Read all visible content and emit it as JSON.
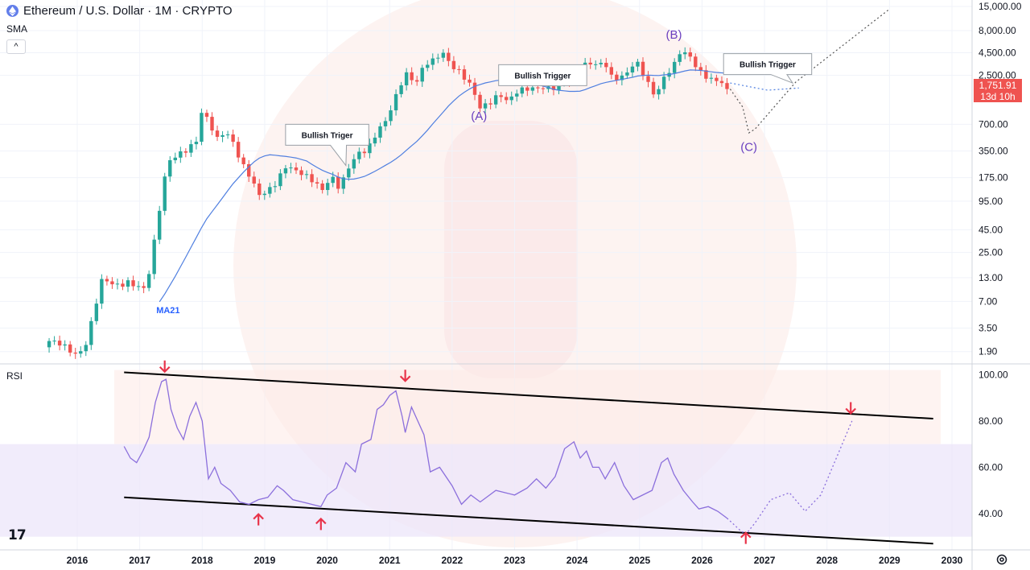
{
  "header": {
    "title": "Ethereum / U.S. Dollar · 1M · CRYPTO",
    "indicator_label": "SMA",
    "collapse_glyph": "^",
    "rsi_label": "RSI",
    "icon": "ethereum-icon",
    "logo_text": "17"
  },
  "price_tag": {
    "price": "1,751.91",
    "countdown": "13d 10h"
  },
  "colors": {
    "up": "#26a69a",
    "down": "#ef5350",
    "ma": "#4f7fe0",
    "rsi": "#8b6fdc",
    "overbought_zone": "#fde9e6",
    "band_zone": "#ece6f9",
    "channel": "#000000",
    "arrow": "#e8334a",
    "wave_label": "#6a3fbf"
  },
  "chart_data": [
    {
      "type": "candlestick",
      "name": "price",
      "y_scale": "log",
      "ylim": [
        1.5,
        15000
      ],
      "price_ticks": [
        15000,
        8000,
        4500,
        2500,
        1751.91,
        700,
        350,
        175,
        95,
        45,
        25,
        13,
        7,
        3.5,
        1.9
      ],
      "price_tick_labels": [
        "15,000.00",
        "8,000.00",
        "4,500.00",
        "2,500.00",
        "1,751.91",
        "700.00",
        "350.00",
        "175.00",
        "95.00",
        "45.00",
        "25.00",
        "13.00",
        "7.00",
        "3.50",
        "1.90"
      ],
      "x_axis": {
        "years": [
          "2016",
          "2017",
          "2018",
          "2019",
          "2020",
          "2021",
          "2022",
          "2023",
          "2024",
          "2025",
          "2026",
          "2027",
          "2028",
          "2029",
          "2030"
        ],
        "start_year": 2015.5,
        "end_year": 2030.2
      },
      "anchors": [
        [
          2015.55,
          2.5
        ],
        [
          2016.0,
          1.8
        ],
        [
          2016.15,
          2.5
        ],
        [
          2016.4,
          12
        ],
        [
          2016.6,
          11
        ],
        [
          2016.8,
          12
        ],
        [
          2016.95,
          10
        ],
        [
          2017.1,
          9
        ],
        [
          2017.25,
          40
        ],
        [
          2017.35,
          120
        ],
        [
          2017.45,
          280
        ],
        [
          2017.6,
          300
        ],
        [
          2017.75,
          340
        ],
        [
          2017.9,
          450
        ],
        [
          2018.0,
          1100
        ],
        [
          2018.1,
          800
        ],
        [
          2018.25,
          450
        ],
        [
          2018.35,
          550
        ],
        [
          2018.5,
          430
        ],
        [
          2018.6,
          290
        ],
        [
          2018.75,
          200
        ],
        [
          2018.9,
          110
        ],
        [
          2019.0,
          110
        ],
        [
          2019.15,
          140
        ],
        [
          2019.35,
          260
        ],
        [
          2019.5,
          210
        ],
        [
          2019.65,
          175
        ],
        [
          2019.8,
          150
        ],
        [
          2019.95,
          130
        ],
        [
          2020.05,
          200
        ],
        [
          2020.2,
          130
        ],
        [
          2020.35,
          220
        ],
        [
          2020.5,
          330
        ],
        [
          2020.65,
          390
        ],
        [
          2020.8,
          600
        ],
        [
          2020.95,
          740
        ],
        [
          2021.1,
          1400
        ],
        [
          2021.25,
          2800
        ],
        [
          2021.35,
          2400
        ],
        [
          2021.45,
          2200
        ],
        [
          2021.55,
          3200
        ],
        [
          2021.7,
          3500
        ],
        [
          2021.85,
          4600
        ],
        [
          2021.95,
          3700
        ],
        [
          2022.1,
          2900
        ],
        [
          2022.3,
          1800
        ],
        [
          2022.45,
          1050
        ],
        [
          2022.6,
          1300
        ],
        [
          2022.75,
          1600
        ],
        [
          2022.9,
          1200
        ],
        [
          2023.05,
          1600
        ],
        [
          2023.25,
          1900
        ],
        [
          2023.45,
          1850
        ],
        [
          2023.6,
          1650
        ],
        [
          2023.8,
          2200
        ],
        [
          2024.0,
          2300
        ],
        [
          2024.15,
          3500
        ],
        [
          2024.3,
          3100
        ],
        [
          2024.45,
          3400
        ],
        [
          2024.55,
          2500
        ],
        [
          2024.75,
          2500
        ],
        [
          2024.95,
          3400
        ],
        [
          2025.1,
          2200
        ],
        [
          2025.25,
          1550
        ],
        [
          2025.4,
          2500
        ],
        [
          2025.55,
          3100
        ],
        [
          2025.65,
          4400
        ],
        [
          2025.8,
          4200
        ],
        [
          2025.95,
          3000
        ],
        [
          2026.15,
          2200
        ],
        [
          2026.3,
          2000
        ],
        [
          2026.4,
          1751.91
        ]
      ],
      "candle_count": 130,
      "ma21": {
        "label": "MA21",
        "start_year": 2017.25
      },
      "projection": {
        "ma_dotted": [
          [
            2026.45,
            2050
          ],
          [
            2027.05,
            1700
          ],
          [
            2027.55,
            1800
          ]
        ],
        "path_dotted": [
          [
            2026.45,
            1751.91
          ],
          [
            2026.65,
            1100
          ],
          [
            2026.75,
            560
          ],
          [
            2026.85,
            620
          ],
          [
            2027.5,
            2100
          ],
          [
            2029.0,
            14000
          ]
        ]
      },
      "annotations": [
        {
          "type": "callout",
          "text": "Bullish Triger",
          "x": 2020.0,
          "y": 700,
          "target_x": 2020.3,
          "target_y": 240
        },
        {
          "type": "callout",
          "text": "Bullish Trigger",
          "x": 2023.45,
          "y": 3300,
          "target_x": 2023.75,
          "target_y": 1900
        },
        {
          "type": "callout",
          "text": "Bullish Trigger",
          "x": 2027.05,
          "y": 4400,
          "target_x": 2027.45,
          "target_y": 2050
        },
        {
          "type": "wave_label",
          "text": "(A)",
          "x": 2022.43,
          "y": 780
        },
        {
          "type": "wave_label",
          "text": "(B)",
          "x": 2025.55,
          "y": 6500
        },
        {
          "type": "wave_label",
          "text": "(C)",
          "x": 2026.75,
          "y": 350
        }
      ]
    },
    {
      "type": "line",
      "name": "RSI",
      "ylim": [
        25,
        105
      ],
      "y_ticks": [
        100,
        80,
        60,
        40
      ],
      "y_tick_labels": [
        "100.00",
        "80.00",
        "60.00",
        "40.00"
      ],
      "shaded_band": [
        30,
        70
      ],
      "x": [
        2016.75,
        2016.85,
        2016.95,
        2017.05,
        2017.15,
        2017.25,
        2017.35,
        2017.42,
        2017.5,
        2017.6,
        2017.7,
        2017.8,
        2017.9,
        2018.0,
        2018.1,
        2018.2,
        2018.3,
        2018.45,
        2018.6,
        2018.75,
        2018.9,
        2019.05,
        2019.2,
        2019.3,
        2019.45,
        2019.6,
        2019.75,
        2019.9,
        2020.0,
        2020.15,
        2020.3,
        2020.45,
        2020.55,
        2020.7,
        2020.8,
        2020.9,
        2021.0,
        2021.1,
        2021.2,
        2021.25,
        2021.35,
        2021.45,
        2021.55,
        2021.65,
        2021.8,
        2022.0,
        2022.15,
        2022.3,
        2022.45,
        2022.55,
        2022.7,
        2022.85,
        2023.0,
        2023.2,
        2023.35,
        2023.5,
        2023.65,
        2023.8,
        2023.95,
        2024.05,
        2024.15,
        2024.25,
        2024.35,
        2024.45,
        2024.6,
        2024.75,
        2024.9,
        2025.05,
        2025.2,
        2025.35,
        2025.45,
        2025.55,
        2025.7,
        2025.85,
        2025.95,
        2026.1,
        2026.25,
        2026.4
      ],
      "values": [
        69,
        64,
        62,
        67,
        73,
        88,
        97,
        98,
        85,
        77,
        72,
        82,
        88,
        80,
        55,
        60,
        53,
        50,
        45,
        44,
        46,
        47,
        52,
        50,
        46,
        45,
        44,
        43,
        48,
        51,
        62,
        58,
        70,
        72,
        85,
        87,
        91,
        93,
        82,
        75,
        86,
        80,
        74,
        58,
        60,
        52,
        44,
        48,
        45,
        47,
        50,
        49,
        48,
        51,
        55,
        51,
        56,
        68,
        71,
        64,
        67,
        60,
        60,
        55,
        62,
        52,
        46,
        48,
        50,
        62,
        64,
        57,
        50,
        45,
        42,
        43,
        41,
        38
      ],
      "projection": [
        [
          2026.4,
          38
        ],
        [
          2026.6,
          33
        ],
        [
          2026.7,
          31
        ],
        [
          2026.85,
          36
        ],
        [
          2027.1,
          46
        ],
        [
          2027.4,
          49
        ],
        [
          2027.65,
          41
        ],
        [
          2027.9,
          48
        ],
        [
          2028.15,
          64
        ],
        [
          2028.4,
          80
        ]
      ],
      "channel_upper": [
        [
          2016.75,
          101
        ],
        [
          2029.7,
          81
        ]
      ],
      "channel_lower": [
        [
          2016.75,
          47
        ],
        [
          2029.7,
          27
        ]
      ],
      "arrows_down": [
        [
          2017.4,
          103
        ],
        [
          2021.25,
          99
        ],
        [
          2028.38,
          85
        ]
      ],
      "arrows_up": [
        [
          2018.9,
          38
        ],
        [
          2019.9,
          36
        ],
        [
          2026.7,
          30
        ]
      ]
    }
  ]
}
